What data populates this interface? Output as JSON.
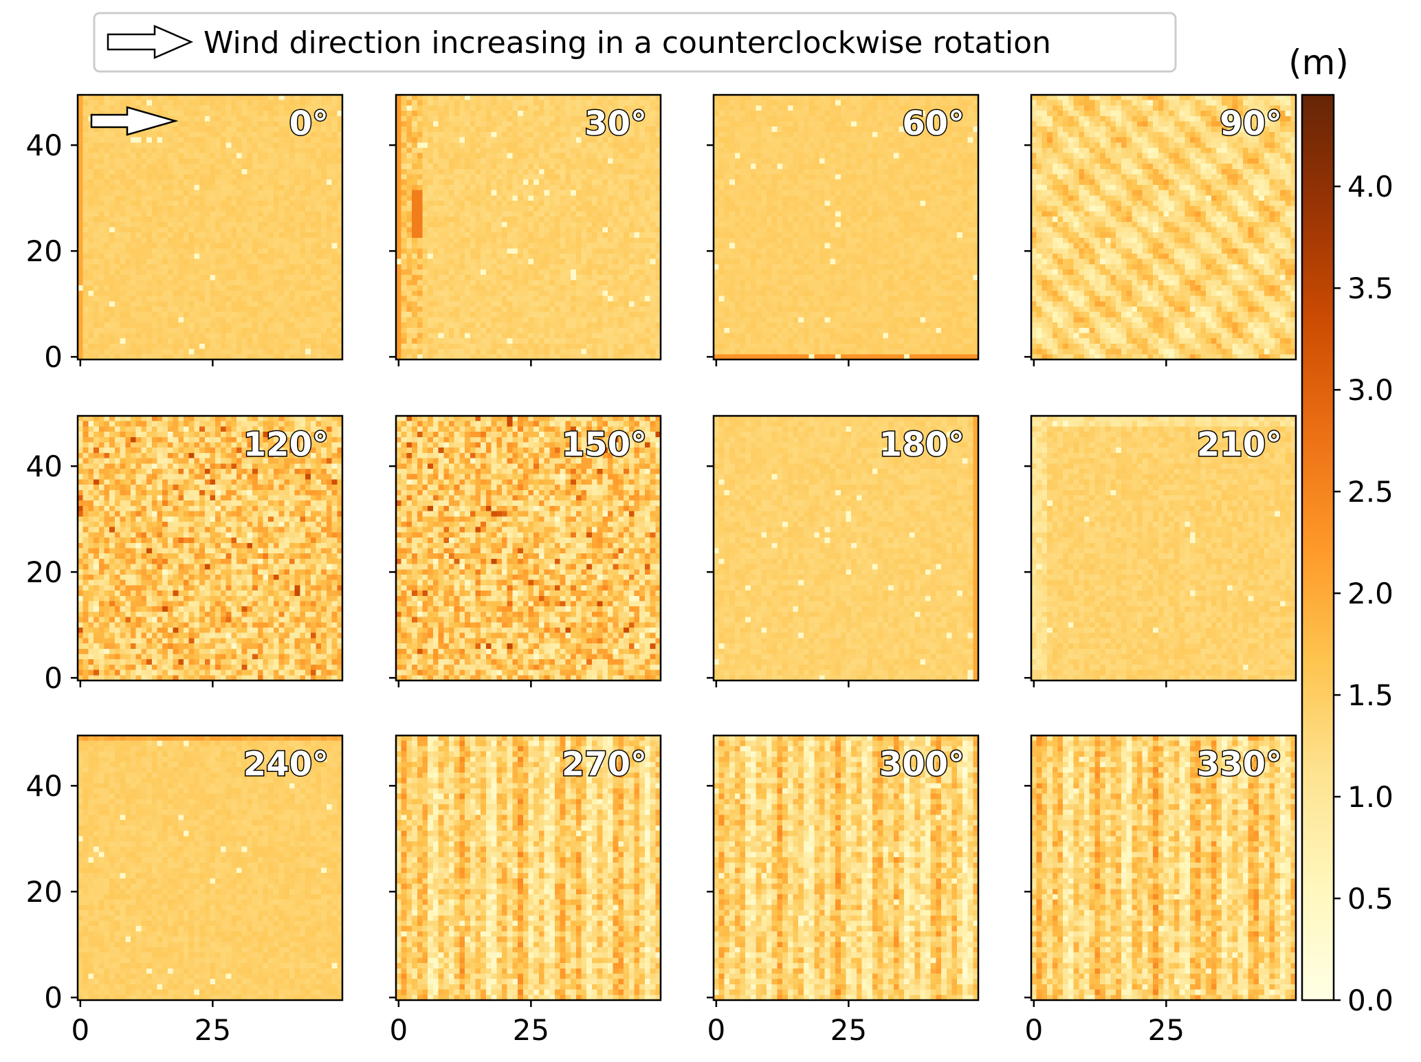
{
  "legend": {
    "text": "Wind direction increasing in a counterclockwise rotation",
    "icon": "outline-arrow-right"
  },
  "colorbar": {
    "unit": "(m)",
    "colormap": "YlOrBr",
    "min": 0.0,
    "max": 4.45,
    "ticks": [
      0.0,
      0.5,
      1.0,
      1.5,
      2.0,
      2.5,
      3.0,
      3.5,
      4.0
    ],
    "tick_labels": [
      "0.0",
      "0.5",
      "1.0",
      "1.5",
      "2.0",
      "2.5",
      "3.0",
      "3.5",
      "4.0"
    ]
  },
  "chart_data": {
    "type": "heatmap",
    "layout": {
      "rows": 3,
      "cols": 4
    },
    "grid_size": [
      50,
      50
    ],
    "xlim": [
      0,
      49
    ],
    "ylim": [
      0,
      49
    ],
    "x_ticks": [
      0,
      25
    ],
    "x_tick_labels": [
      "0",
      "25"
    ],
    "y_ticks": [
      0,
      20,
      40
    ],
    "y_tick_labels": [
      "0",
      "20",
      "40"
    ],
    "value_unit": "m",
    "panels": [
      {
        "label": "0°",
        "pattern": "uniform",
        "mean": 1.45,
        "noise": 0.12,
        "edge": "left",
        "edge_value": 2.0,
        "show_arrow": true
      },
      {
        "label": "30°",
        "pattern": "left-band",
        "mean": 1.4,
        "noise": 0.15,
        "edge": "left",
        "edge_value": 2.2
      },
      {
        "label": "60°",
        "pattern": "uniform",
        "mean": 1.45,
        "noise": 0.1,
        "edge": "bottom",
        "edge_value": 2.3
      },
      {
        "label": "90°",
        "pattern": "diagonal-stripes",
        "mean": 1.3,
        "noise": 0.5
      },
      {
        "label": "120°",
        "pattern": "speckled",
        "mean": 1.5,
        "noise": 0.7
      },
      {
        "label": "150°",
        "pattern": "speckled",
        "mean": 1.5,
        "noise": 0.75
      },
      {
        "label": "180°",
        "pattern": "uniform",
        "mean": 1.4,
        "noise": 0.12,
        "edge": "right",
        "edge_value": 2.0
      },
      {
        "label": "210°",
        "pattern": "uniform",
        "mean": 1.4,
        "noise": 0.15,
        "edge": "left-top",
        "edge_value": 1.0
      },
      {
        "label": "240°",
        "pattern": "uniform",
        "mean": 1.45,
        "noise": 0.12,
        "edge": "top",
        "edge_value": 2.0
      },
      {
        "label": "270°",
        "pattern": "vertical-streaks",
        "mean": 1.35,
        "noise": 0.7
      },
      {
        "label": "300°",
        "pattern": "vertical-streaks",
        "mean": 1.3,
        "noise": 0.7
      },
      {
        "label": "330°",
        "pattern": "vertical-streaks",
        "mean": 1.35,
        "noise": 0.7
      }
    ]
  }
}
